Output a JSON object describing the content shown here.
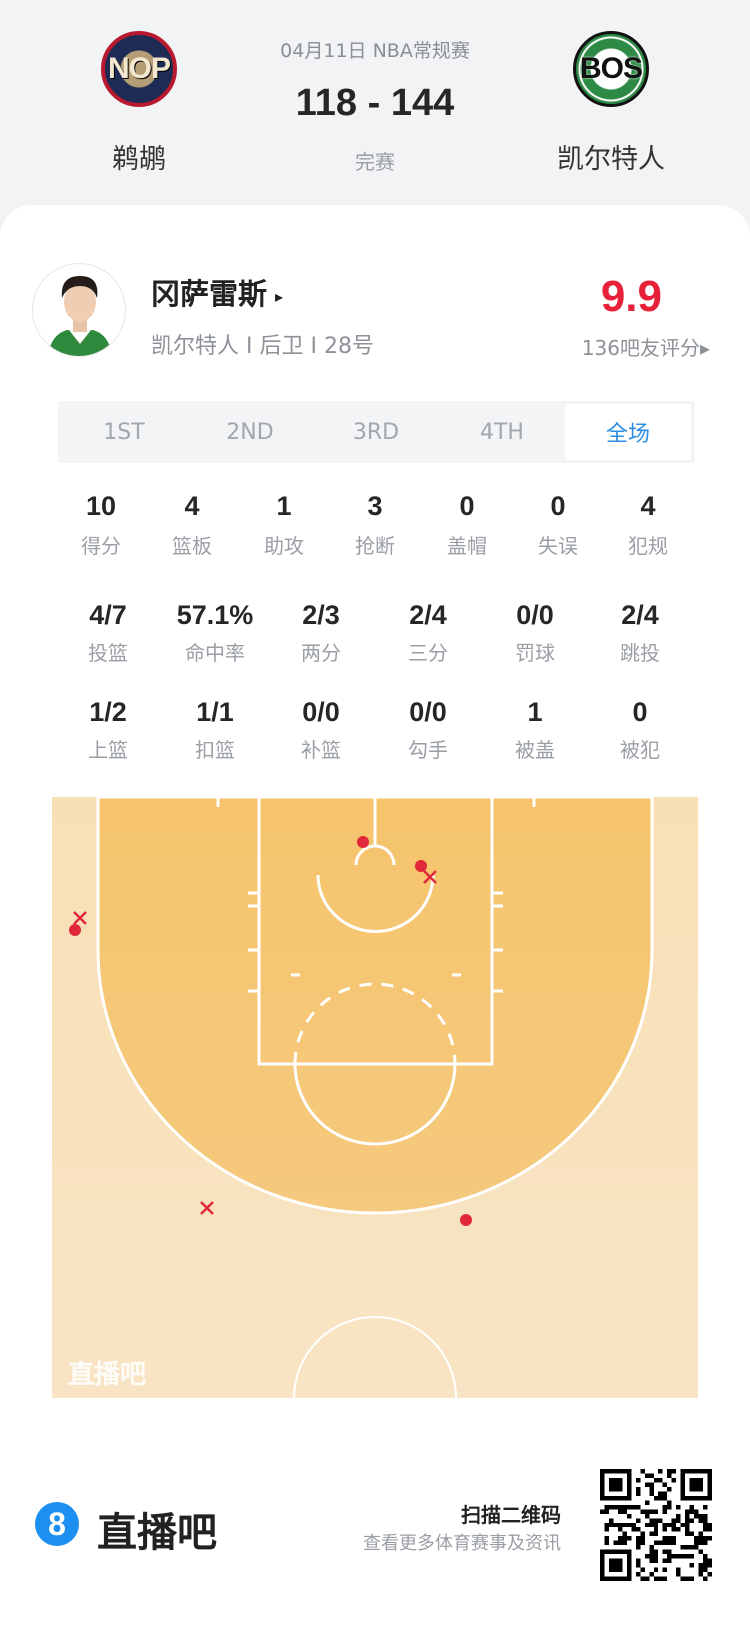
{
  "game": {
    "date_type": "04月11日 NBA常规赛",
    "score": "118 - 144",
    "status": "完赛",
    "home": {
      "abbr": "NOP",
      "name": "鹈鹕"
    },
    "away": {
      "abbr": "BOS",
      "name": "凯尔特人"
    }
  },
  "player": {
    "name": "冈萨雷斯",
    "arrow": "▸",
    "info": "凯尔特人 I 后卫 I 28号",
    "rating": "9.9",
    "rating_count": "136吧友评分▸",
    "rating_color": "#e8213a"
  },
  "tabs": [
    {
      "label": "1ST"
    },
    {
      "label": "2ND"
    },
    {
      "label": "3RD"
    },
    {
      "label": "4TH"
    },
    {
      "label": "全场",
      "active": true
    }
  ],
  "stats_row1": [
    {
      "value": "10",
      "label": "得分"
    },
    {
      "value": "4",
      "label": "篮板"
    },
    {
      "value": "1",
      "label": "助攻"
    },
    {
      "value": "3",
      "label": "抢断"
    },
    {
      "value": "0",
      "label": "盖帽"
    },
    {
      "value": "0",
      "label": "失误"
    },
    {
      "value": "4",
      "label": "犯规"
    }
  ],
  "stats_row2": [
    {
      "value": "4/7",
      "label": "投篮"
    },
    {
      "value": "57.1%",
      "label": "命中率"
    },
    {
      "value": "2/3",
      "label": "两分"
    },
    {
      "value": "2/4",
      "label": "三分"
    },
    {
      "value": "0/0",
      "label": "罚球"
    },
    {
      "value": "2/4",
      "label": "跳投"
    }
  ],
  "stats_row3": [
    {
      "value": "1/2",
      "label": "上篮"
    },
    {
      "value": "1/1",
      "label": "扣篮"
    },
    {
      "value": "0/0",
      "label": "补篮"
    },
    {
      "value": "0/0",
      "label": "勾手"
    },
    {
      "value": "1",
      "label": "被盖"
    },
    {
      "value": "0",
      "label": "被犯"
    }
  ],
  "court": {
    "watermark": "直播吧",
    "shot_color": "#e0283a",
    "shots": [
      {
        "result": "made"
      },
      {
        "result": "made"
      },
      {
        "result": "missed"
      },
      {
        "result": "missed"
      },
      {
        "result": "made"
      },
      {
        "result": "missed"
      },
      {
        "result": "made"
      }
    ]
  },
  "footer": {
    "brand_badge": "8",
    "brand": "直播吧",
    "scan": "扫描二维码",
    "scan_sub": "查看更多体育赛事及资讯"
  }
}
